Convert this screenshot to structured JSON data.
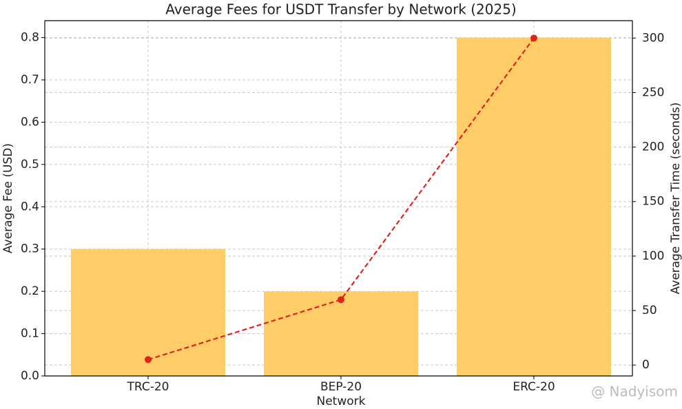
{
  "chart_data": {
    "type": "bar",
    "title": "Average Fees for USDT Transfer by Network (2025)",
    "xlabel": "Network",
    "ylabel": "Average Fee (USD)",
    "y2label": "Average Transfer Time (seconds)",
    "categories": [
      "TRC-20",
      "BEP-20",
      "ERC-20"
    ],
    "series": [
      {
        "name": "Average Fee (USD)",
        "type": "bar",
        "color": "#fecd67",
        "values": [
          0.3,
          0.2,
          0.8
        ]
      },
      {
        "name": "Average Transfer Time (seconds)",
        "type": "line",
        "axis": "y2",
        "color": "#e0231a",
        "values": [
          5,
          60,
          300
        ]
      }
    ],
    "ylim": [
      0,
      0.84
    ],
    "yticks": [
      {
        "value": 0,
        "label": "0.0"
      },
      0.1,
      0.2,
      0.3,
      0.4,
      0.5,
      0.6,
      0.7,
      0.8
    ],
    "y2lim": [
      -10,
      316
    ],
    "y2ticks": [
      0,
      50,
      100,
      150,
      200,
      250,
      300
    ],
    "grid": true,
    "watermark": "@ Nadyisom"
  }
}
